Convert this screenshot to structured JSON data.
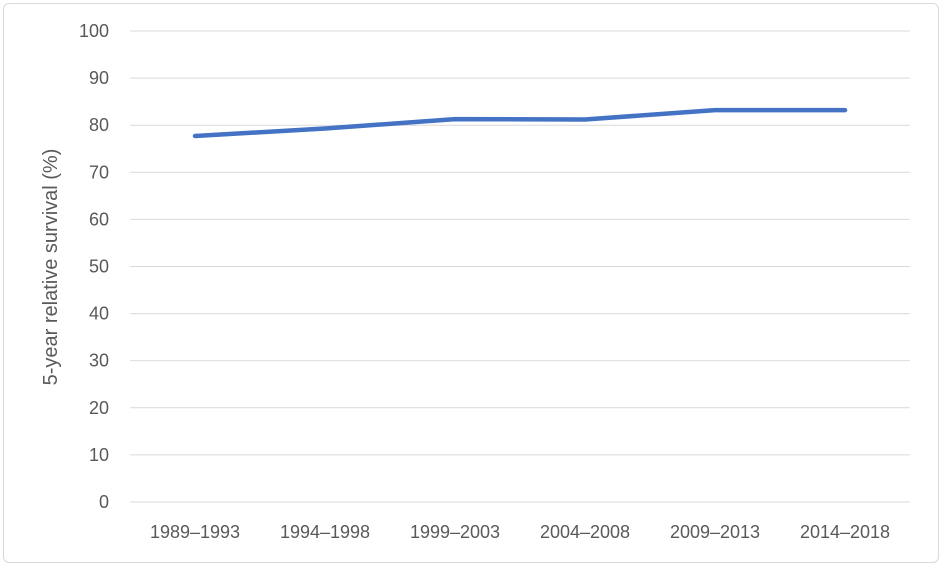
{
  "chart_data": {
    "type": "line",
    "title": "",
    "xlabel": "",
    "ylabel": "5-year relative survival (%)",
    "categories": [
      "1989–1993",
      "1994–1998",
      "1999–2003",
      "2004–2008",
      "2009–2013",
      "2014–2018"
    ],
    "series": [
      {
        "values": [
          77.7,
          79.3,
          81.3,
          81.2,
          83.2,
          83.2
        ],
        "color": "#4472c4"
      }
    ],
    "ylim": [
      0,
      100
    ],
    "yticks": [
      0,
      10,
      20,
      30,
      40,
      50,
      60,
      70,
      80,
      90,
      100
    ],
    "grid": true,
    "legend": "none"
  }
}
